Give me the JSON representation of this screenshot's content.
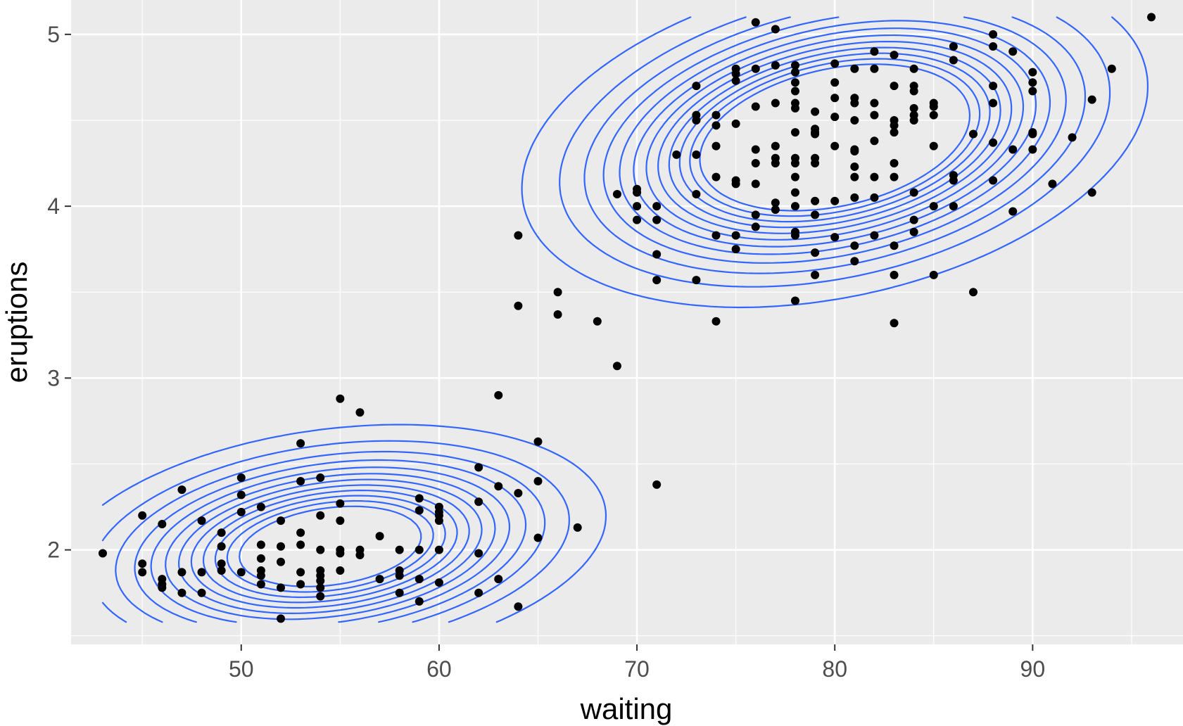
{
  "chart_data": {
    "type": "scatter",
    "title": "",
    "xlabel": "waiting",
    "ylabel": "eruptions",
    "xlim": [
      41.4,
      97.6
    ],
    "ylim": [
      1.45,
      5.2
    ],
    "x_ticks": [
      50,
      60,
      70,
      80,
      90
    ],
    "y_ticks": [
      2,
      3,
      4,
      5
    ],
    "x_minor_ticks": [
      45,
      55,
      65,
      75,
      85,
      95
    ],
    "y_minor_ticks": [
      1.5,
      2.5,
      3.5,
      4.5
    ],
    "grid": true,
    "legend": "none",
    "background_color": "#ebebeb",
    "grid_color": "#ffffff",
    "point_color": "#000000",
    "contour_color": "#3366ff",
    "points": [
      [
        43,
        1.98
      ],
      [
        45,
        2.2
      ],
      [
        45,
        1.92
      ],
      [
        45,
        1.87
      ],
      [
        46,
        2.15
      ],
      [
        46,
        1.83
      ],
      [
        46,
        1.8
      ],
      [
        46,
        1.78
      ],
      [
        47,
        2.35
      ],
      [
        47,
        1.87
      ],
      [
        47,
        1.75
      ],
      [
        48,
        2.17
      ],
      [
        48,
        1.87
      ],
      [
        48,
        1.75
      ],
      [
        49,
        2.1
      ],
      [
        49,
        2.02
      ],
      [
        49,
        1.92
      ],
      [
        49,
        1.88
      ],
      [
        50,
        2.42
      ],
      [
        50,
        2.32
      ],
      [
        50,
        2.22
      ],
      [
        50,
        1.87
      ],
      [
        51,
        2.25
      ],
      [
        51,
        2.03
      ],
      [
        51,
        1.95
      ],
      [
        51,
        1.88
      ],
      [
        51,
        1.85
      ],
      [
        51,
        1.8
      ],
      [
        52,
        2.17
      ],
      [
        52,
        2.02
      ],
      [
        52,
        1.93
      ],
      [
        52,
        1.78
      ],
      [
        52,
        1.6
      ],
      [
        53,
        2.62
      ],
      [
        53,
        2.4
      ],
      [
        53,
        2.1
      ],
      [
        53,
        2.03
      ],
      [
        53,
        1.87
      ],
      [
        53,
        1.8
      ],
      [
        54,
        2.42
      ],
      [
        54,
        2.2
      ],
      [
        54,
        2.0
      ],
      [
        54,
        1.88
      ],
      [
        54,
        1.85
      ],
      [
        54,
        1.82
      ],
      [
        54,
        1.78
      ],
      [
        54,
        1.73
      ],
      [
        55,
        2.88
      ],
      [
        55,
        2.27
      ],
      [
        55,
        2.17
      ],
      [
        55,
        2.0
      ],
      [
        55,
        1.98
      ],
      [
        55,
        1.88
      ],
      [
        56,
        2.8
      ],
      [
        56,
        2.0
      ],
      [
        56,
        1.97
      ],
      [
        57,
        2.08
      ],
      [
        57,
        1.83
      ],
      [
        58,
        2.0
      ],
      [
        58,
        1.88
      ],
      [
        58,
        1.85
      ],
      [
        58,
        1.75
      ],
      [
        59,
        2.3
      ],
      [
        59,
        2.23
      ],
      [
        59,
        2.0
      ],
      [
        59,
        1.83
      ],
      [
        59,
        1.7
      ],
      [
        60,
        2.25
      ],
      [
        60,
        2.22
      ],
      [
        60,
        2.2
      ],
      [
        60,
        2.17
      ],
      [
        60,
        2.0
      ],
      [
        60,
        1.81
      ],
      [
        62,
        2.48
      ],
      [
        62,
        2.28
      ],
      [
        62,
        1.98
      ],
      [
        62,
        1.75
      ],
      [
        63,
        2.9
      ],
      [
        63,
        2.37
      ],
      [
        63,
        1.83
      ],
      [
        64,
        3.83
      ],
      [
        64,
        3.42
      ],
      [
        64,
        2.33
      ],
      [
        64,
        1.67
      ],
      [
        65,
        2.63
      ],
      [
        65,
        2.4
      ],
      [
        65,
        2.07
      ],
      [
        66,
        3.5
      ],
      [
        66,
        3.37
      ],
      [
        67,
        2.13
      ],
      [
        68,
        3.33
      ],
      [
        69,
        4.07
      ],
      [
        69,
        3.07
      ],
      [
        70,
        4.1
      ],
      [
        70,
        4.08
      ],
      [
        70,
        4.0
      ],
      [
        70,
        3.92
      ],
      [
        71,
        4.0
      ],
      [
        71,
        3.92
      ],
      [
        71,
        3.72
      ],
      [
        71,
        3.57
      ],
      [
        71,
        2.38
      ],
      [
        72,
        4.3
      ],
      [
        73,
        4.7
      ],
      [
        73,
        4.53
      ],
      [
        73,
        4.5
      ],
      [
        73,
        4.3
      ],
      [
        73,
        4.07
      ],
      [
        73,
        3.57
      ],
      [
        74,
        4.53
      ],
      [
        74,
        4.47
      ],
      [
        74,
        4.35
      ],
      [
        74,
        4.17
      ],
      [
        74,
        3.83
      ],
      [
        74,
        3.33
      ],
      [
        75,
        4.8
      ],
      [
        75,
        4.77
      ],
      [
        75,
        4.73
      ],
      [
        75,
        4.48
      ],
      [
        75,
        4.15
      ],
      [
        75,
        4.13
      ],
      [
        75,
        3.83
      ],
      [
        75,
        3.75
      ],
      [
        76,
        5.07
      ],
      [
        76,
        4.8
      ],
      [
        76,
        4.58
      ],
      [
        76,
        4.33
      ],
      [
        76,
        4.25
      ],
      [
        76,
        4.13
      ],
      [
        76,
        3.95
      ],
      [
        76,
        3.88
      ],
      [
        77,
        5.03
      ],
      [
        77,
        4.82
      ],
      [
        77,
        4.6
      ],
      [
        77,
        4.35
      ],
      [
        77,
        4.28
      ],
      [
        77,
        4.25
      ],
      [
        77,
        4.02
      ],
      [
        77,
        3.98
      ],
      [
        78,
        4.82
      ],
      [
        78,
        4.78
      ],
      [
        78,
        4.72
      ],
      [
        78,
        4.67
      ],
      [
        78,
        4.6
      ],
      [
        78,
        4.57
      ],
      [
        78,
        4.43
      ],
      [
        78,
        4.28
      ],
      [
        78,
        4.25
      ],
      [
        78,
        4.17
      ],
      [
        78,
        4.08
      ],
      [
        78,
        4.0
      ],
      [
        78,
        3.85
      ],
      [
        78,
        3.83
      ],
      [
        78,
        3.45
      ],
      [
        79,
        4.55
      ],
      [
        79,
        4.45
      ],
      [
        79,
        4.43
      ],
      [
        79,
        4.42
      ],
      [
        79,
        4.28
      ],
      [
        79,
        4.25
      ],
      [
        79,
        4.03
      ],
      [
        79,
        3.95
      ],
      [
        79,
        3.73
      ],
      [
        79,
        3.6
      ],
      [
        80,
        4.83
      ],
      [
        80,
        4.72
      ],
      [
        80,
        4.63
      ],
      [
        80,
        4.52
      ],
      [
        80,
        4.35
      ],
      [
        80,
        4.03
      ],
      [
        80,
        3.82
      ],
      [
        81,
        4.8
      ],
      [
        81,
        4.63
      ],
      [
        81,
        4.6
      ],
      [
        81,
        4.5
      ],
      [
        81,
        4.33
      ],
      [
        81,
        4.32
      ],
      [
        81,
        4.23
      ],
      [
        81,
        4.17
      ],
      [
        81,
        4.05
      ],
      [
        81,
        3.77
      ],
      [
        81,
        3.68
      ],
      [
        82,
        4.9
      ],
      [
        82,
        4.8
      ],
      [
        82,
        4.6
      ],
      [
        82,
        4.53
      ],
      [
        82,
        4.38
      ],
      [
        82,
        4.17
      ],
      [
        82,
        4.05
      ],
      [
        82,
        3.83
      ],
      [
        83,
        4.88
      ],
      [
        83,
        4.7
      ],
      [
        83,
        4.5
      ],
      [
        83,
        4.47
      ],
      [
        83,
        4.43
      ],
      [
        83,
        4.25
      ],
      [
        83,
        4.17
      ],
      [
        83,
        3.77
      ],
      [
        83,
        3.6
      ],
      [
        83,
        3.32
      ],
      [
        84,
        4.8
      ],
      [
        84,
        4.7
      ],
      [
        84,
        4.67
      ],
      [
        84,
        4.57
      ],
      [
        84,
        4.53
      ],
      [
        84,
        4.5
      ],
      [
        84,
        4.08
      ],
      [
        84,
        3.92
      ],
      [
        84,
        3.85
      ],
      [
        85,
        4.6
      ],
      [
        85,
        4.58
      ],
      [
        85,
        4.53
      ],
      [
        85,
        4.35
      ],
      [
        85,
        4.0
      ],
      [
        85,
        3.6
      ],
      [
        86,
        4.93
      ],
      [
        86,
        4.85
      ],
      [
        86,
        4.18
      ],
      [
        86,
        4.15
      ],
      [
        86,
        4.0
      ],
      [
        87,
        4.42
      ],
      [
        87,
        3.5
      ],
      [
        88,
        5.0
      ],
      [
        88,
        4.93
      ],
      [
        88,
        4.7
      ],
      [
        88,
        4.6
      ],
      [
        88,
        4.37
      ],
      [
        88,
        4.15
      ],
      [
        89,
        4.9
      ],
      [
        89,
        4.33
      ],
      [
        89,
        3.97
      ],
      [
        90,
        4.78
      ],
      [
        90,
        4.72
      ],
      [
        90,
        4.67
      ],
      [
        90,
        4.43
      ],
      [
        90,
        4.42
      ],
      [
        90,
        4.33
      ],
      [
        91,
        4.13
      ],
      [
        92,
        4.4
      ],
      [
        93,
        4.62
      ],
      [
        93,
        4.08
      ],
      [
        94,
        4.8
      ],
      [
        96,
        5.1
      ]
    ],
    "density": {
      "components": [
        {
          "weight": 0.35,
          "mean": [
            54.5,
            2.02
          ],
          "sd": [
            5.9,
            0.3
          ],
          "rho": 0.25
        },
        {
          "weight": 0.65,
          "mean": [
            80.0,
            4.4
          ],
          "sd": [
            6.4,
            0.4
          ],
          "rho": 0.3
        }
      ],
      "levels": [
        0.002,
        0.004,
        0.006,
        0.008,
        0.01,
        0.012,
        0.014,
        0.016,
        0.018,
        0.02,
        0.022,
        0.024
      ]
    }
  }
}
